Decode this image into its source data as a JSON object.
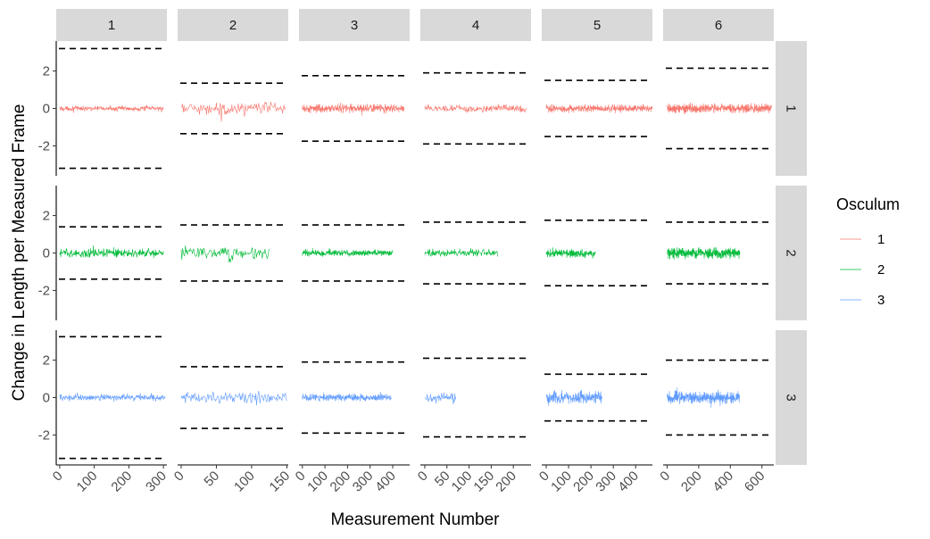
{
  "chart_data": {
    "type": "line",
    "facet_layout": "grid",
    "xlabel": "Measurement Number",
    "ylabel": "Change in Length per Measured Frame",
    "col_facet_labels": [
      "1",
      "2",
      "3",
      "4",
      "5",
      "6"
    ],
    "row_facet_labels": [
      "1",
      "2",
      "3"
    ],
    "ylim": [
      -3.6,
      3.6
    ],
    "y_ticks": [
      -2,
      0,
      2
    ],
    "y_tick_labels": [
      "-2",
      "0",
      "2"
    ],
    "columns": [
      {
        "xlim": [
          -10,
          310
        ],
        "ticks": [
          0,
          100,
          200,
          300
        ],
        "tick_labels": [
          "0",
          "100",
          "200",
          "300"
        ]
      },
      {
        "xlim": [
          -5,
          152
        ],
        "ticks": [
          0,
          50,
          100,
          150
        ],
        "tick_labels": [
          "0",
          "50",
          "100",
          "150"
        ]
      },
      {
        "xlim": [
          -15,
          475
        ],
        "ticks": [
          0,
          100,
          200,
          300,
          400
        ],
        "tick_labels": [
          "0",
          "100",
          "200",
          "300",
          "400"
        ]
      },
      {
        "xlim": [
          -10,
          240
        ],
        "ticks": [
          0,
          50,
          100,
          150,
          200
        ],
        "tick_labels": [
          "0",
          "50",
          "100",
          "150",
          "200"
        ]
      },
      {
        "xlim": [
          -20,
          475
        ],
        "ticks": [
          0,
          100,
          200,
          300,
          400
        ],
        "tick_labels": [
          "0",
          "100",
          "200",
          "300",
          "400"
        ]
      },
      {
        "xlim": [
          -25,
          675
        ],
        "ticks": [
          0,
          200,
          400,
          600
        ],
        "tick_labels": [
          "0",
          "200",
          "400",
          "600"
        ]
      }
    ],
    "series": [
      {
        "name": "1",
        "color": "#F8766D"
      },
      {
        "name": "2",
        "color": "#00BA38"
      },
      {
        "name": "3",
        "color": "#619CFF"
      }
    ],
    "panels": [
      {
        "row": 1,
        "col": 1,
        "n": 300,
        "amp": 0.15,
        "threshold": 3.2
      },
      {
        "row": 1,
        "col": 2,
        "n": 148,
        "amp": 0.35,
        "threshold": 1.35
      },
      {
        "row": 1,
        "col": 3,
        "n": 450,
        "amp": 0.25,
        "threshold": 1.75
      },
      {
        "row": 1,
        "col": 4,
        "n": 230,
        "amp": 0.22,
        "threshold": 1.9
      },
      {
        "row": 1,
        "col": 5,
        "n": 475,
        "amp": 0.22,
        "threshold": 1.5
      },
      {
        "row": 1,
        "col": 6,
        "n": 660,
        "amp": 0.25,
        "threshold": 2.15
      },
      {
        "row": 2,
        "col": 1,
        "n": 300,
        "amp": 0.25,
        "threshold": 1.4
      },
      {
        "row": 2,
        "col": 2,
        "n": 125,
        "amp": 0.35,
        "threshold": 1.5
      },
      {
        "row": 2,
        "col": 3,
        "n": 400,
        "amp": 0.18,
        "threshold": 1.5
      },
      {
        "row": 2,
        "col": 4,
        "n": 165,
        "amp": 0.22,
        "threshold": 1.65
      },
      {
        "row": 2,
        "col": 5,
        "n": 220,
        "amp": 0.25,
        "threshold": 1.75
      },
      {
        "row": 2,
        "col": 6,
        "n": 460,
        "amp": 0.3,
        "threshold": 1.65
      },
      {
        "row": 3,
        "col": 1,
        "n": 305,
        "amp": 0.18,
        "threshold": 3.25
      },
      {
        "row": 3,
        "col": 2,
        "n": 150,
        "amp": 0.35,
        "threshold": 1.65
      },
      {
        "row": 3,
        "col": 3,
        "n": 395,
        "amp": 0.2,
        "threshold": 1.9
      },
      {
        "row": 3,
        "col": 4,
        "n": 70,
        "amp": 0.3,
        "threshold": 2.1
      },
      {
        "row": 3,
        "col": 5,
        "n": 250,
        "amp": 0.35,
        "threshold": 1.25
      },
      {
        "row": 3,
        "col": 6,
        "n": 460,
        "amp": 0.35,
        "threshold": 2.0
      }
    ],
    "legend": {
      "title": "Osculum",
      "position": "right",
      "entries": [
        "1",
        "2",
        "3"
      ]
    }
  }
}
